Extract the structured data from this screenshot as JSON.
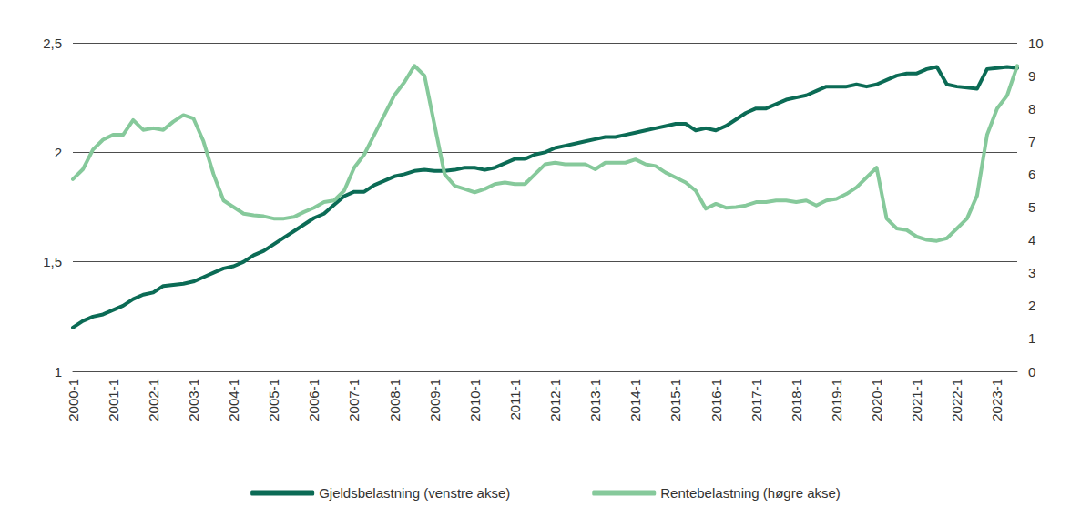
{
  "chart_data": {
    "type": "line",
    "categories": [
      "2000-1",
      null,
      null,
      null,
      "2001-1",
      null,
      null,
      null,
      "2002-1",
      null,
      null,
      null,
      "2003-1",
      null,
      null,
      null,
      "2004-1",
      null,
      null,
      null,
      "2005-1",
      null,
      null,
      null,
      "2006-1",
      null,
      null,
      null,
      "2007-1",
      null,
      null,
      null,
      "2008-1",
      null,
      null,
      null,
      "2009-1",
      null,
      null,
      null,
      "2010-1",
      null,
      null,
      null,
      "2011-1",
      null,
      null,
      null,
      "2012-1",
      null,
      null,
      null,
      "2013-1",
      null,
      null,
      null,
      "2014-1",
      null,
      null,
      null,
      "2015-1",
      null,
      null,
      null,
      "2016-1",
      null,
      null,
      null,
      "2017-1",
      null,
      null,
      null,
      "2018-1",
      null,
      null,
      null,
      "2019-1",
      null,
      null,
      null,
      "2020-1",
      null,
      null,
      null,
      "2021-1",
      null,
      null,
      null,
      "2022-1",
      null,
      null,
      null,
      "2023-1",
      null,
      null
    ],
    "series": [
      {
        "name": "Gjeldsbelastning (venstre akse)",
        "color": "#0b6b55",
        "axis": "y",
        "values": [
          1.2,
          1.23,
          1.25,
          1.26,
          1.28,
          1.3,
          1.33,
          1.35,
          1.36,
          1.39,
          1.395,
          1.4,
          1.41,
          1.43,
          1.45,
          1.47,
          1.48,
          1.5,
          1.53,
          1.55,
          1.58,
          1.61,
          1.64,
          1.67,
          1.7,
          1.72,
          1.76,
          1.8,
          1.82,
          1.82,
          1.85,
          1.87,
          1.89,
          1.9,
          1.915,
          1.92,
          1.915,
          1.915,
          1.92,
          1.93,
          1.93,
          1.92,
          1.93,
          1.95,
          1.97,
          1.97,
          1.99,
          2.0,
          2.02,
          2.03,
          2.04,
          2.05,
          2.06,
          2.07,
          2.07,
          2.08,
          2.09,
          2.1,
          2.11,
          2.12,
          2.13,
          2.13,
          2.1,
          2.11,
          2.1,
          2.12,
          2.15,
          2.18,
          2.2,
          2.2,
          2.22,
          2.24,
          2.25,
          2.26,
          2.28,
          2.3,
          2.3,
          2.3,
          2.31,
          2.3,
          2.31,
          2.33,
          2.35,
          2.36,
          2.36,
          2.38,
          2.39,
          2.31,
          2.3,
          2.295,
          2.29,
          2.38,
          2.385,
          2.39,
          2.385
        ]
      },
      {
        "name": "Rentebelastning (høgre akse)",
        "color": "#86c99b",
        "axis": "y2",
        "values": [
          5.85,
          6.15,
          6.75,
          7.05,
          7.2,
          7.2,
          7.65,
          7.35,
          7.4,
          7.35,
          7.6,
          7.8,
          7.7,
          7.0,
          6.0,
          5.2,
          5.0,
          4.8,
          4.75,
          4.72,
          4.65,
          4.65,
          4.7,
          4.85,
          4.98,
          5.15,
          5.2,
          5.5,
          6.2,
          6.6,
          7.2,
          7.8,
          8.4,
          8.8,
          9.3,
          9.0,
          7.5,
          6.0,
          5.65,
          5.55,
          5.45,
          5.55,
          5.7,
          5.75,
          5.7,
          5.7,
          6.0,
          6.3,
          6.35,
          6.3,
          6.3,
          6.3,
          6.15,
          6.35,
          6.35,
          6.35,
          6.45,
          6.3,
          6.25,
          6.05,
          5.9,
          5.75,
          5.5,
          4.95,
          5.1,
          4.98,
          5.0,
          5.05,
          5.15,
          5.15,
          5.2,
          5.2,
          5.15,
          5.2,
          5.05,
          5.2,
          5.25,
          5.4,
          5.6,
          5.9,
          6.2,
          4.65,
          4.35,
          4.3,
          4.1,
          4.0,
          3.97,
          4.05,
          4.35,
          4.65,
          5.35,
          7.2,
          8.0,
          8.4,
          9.3
        ]
      }
    ],
    "ylim": [
      1,
      2.5
    ],
    "yticks": [
      1,
      {
        "value": 1.5,
        "label": "1,5"
      },
      2,
      {
        "value": 2.5,
        "label": "2,5"
      }
    ],
    "y2lim": [
      0,
      10
    ],
    "y2ticks": [
      0,
      1,
      2,
      3,
      4,
      5,
      6,
      7,
      8,
      9,
      10
    ],
    "grid": true,
    "legend": "bottom"
  }
}
